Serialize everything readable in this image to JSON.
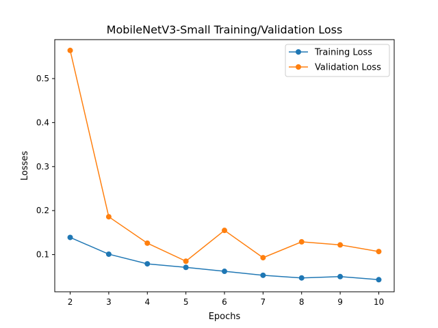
{
  "chart_data": {
    "type": "line",
    "title": "MobileNetV3-Small Training/Validation Loss",
    "xlabel": "Epochs",
    "ylabel": "Losses",
    "x": [
      2,
      3,
      4,
      5,
      6,
      7,
      8,
      9,
      10
    ],
    "xlim": [
      1.6,
      10.4
    ],
    "ylim": [
      0.0155,
      0.5885
    ],
    "xticks": [
      2,
      3,
      4,
      5,
      6,
      7,
      8,
      9,
      10
    ],
    "yticks": [
      0.1,
      0.2,
      0.3,
      0.4,
      0.5
    ],
    "grid": false,
    "legend_position": "top-right",
    "series": [
      {
        "name": "Training Loss",
        "color": "#1f77b4",
        "marker": "circle",
        "values": [
          0.139,
          0.101,
          0.079,
          0.071,
          0.062,
          0.053,
          0.047,
          0.05,
          0.043
        ]
      },
      {
        "name": "Validation Loss",
        "color": "#ff7f0e",
        "marker": "circle",
        "values": [
          0.564,
          0.186,
          0.126,
          0.085,
          0.155,
          0.093,
          0.129,
          0.122,
          0.107
        ]
      }
    ]
  }
}
